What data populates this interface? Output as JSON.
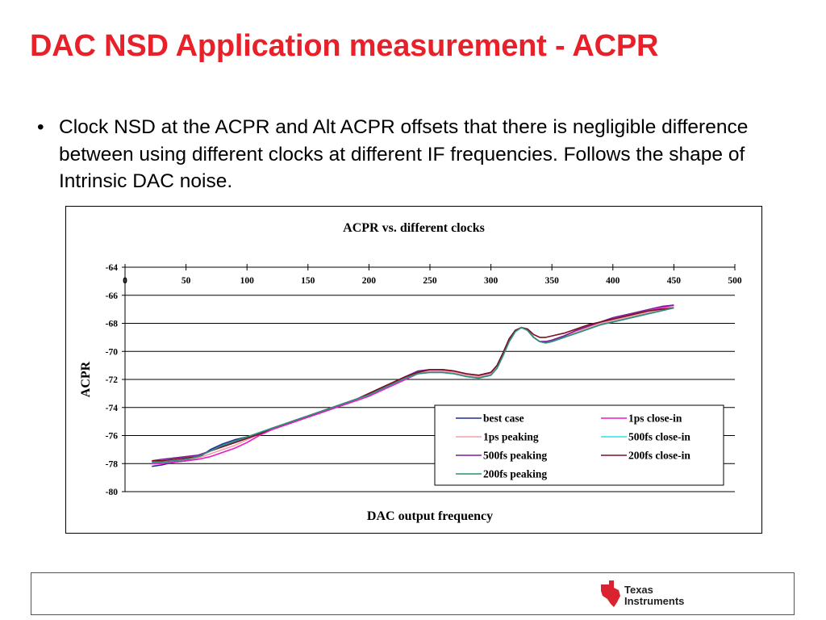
{
  "slide": {
    "title": "DAC NSD Application measurement - ACPR",
    "bullets": [
      "Clock NSD at the ACPR and Alt ACPR offsets that there is negligible difference between using different clocks at different IF frequencies. Follows the shape of Intrinsic DAC noise."
    ],
    "bullet_symbol": "•"
  },
  "footer": {
    "logo_line1": "Texas",
    "logo_line2": "Instruments",
    "logo_icon": "texas-state-ti-logo-icon",
    "logo_color": "#d9232e"
  },
  "chart_data": {
    "type": "line",
    "title": "ACPR vs. different clocks",
    "xlabel": "DAC output frequency",
    "ylabel": "ACPR",
    "xlim": [
      0,
      500
    ],
    "ylim": [
      -80,
      -64
    ],
    "x_ticks": [
      0,
      50,
      100,
      150,
      200,
      250,
      300,
      350,
      400,
      450,
      500
    ],
    "y_ticks": [
      -64,
      -66,
      -68,
      -70,
      -72,
      -74,
      -76,
      -78,
      -80
    ],
    "x_axis_position": "top",
    "grid": "horizontal",
    "legend_position": "bottom-right",
    "series": [
      {
        "name": "best case",
        "color": "#1f2f8f",
        "x": [
          22,
          30,
          40,
          50,
          60,
          70,
          80,
          90,
          100,
          110,
          120,
          130,
          140,
          150,
          160,
          170,
          180,
          190,
          200,
          210,
          220,
          230,
          240,
          250,
          260,
          270,
          280,
          290,
          300,
          305,
          310,
          315,
          320,
          325,
          330,
          335,
          340,
          345,
          350,
          360,
          370,
          380,
          390,
          400,
          410,
          420,
          430,
          440,
          450
        ],
        "y": [
          -78.2,
          -78.1,
          -77.9,
          -77.8,
          -77.6,
          -77.0,
          -76.6,
          -76.3,
          -76.1,
          -75.8,
          -75.5,
          -75.2,
          -74.9,
          -74.6,
          -74.3,
          -74.0,
          -73.7,
          -73.4,
          -73.1,
          -72.7,
          -72.3,
          -71.9,
          -71.6,
          -71.5,
          -71.5,
          -71.6,
          -71.8,
          -71.9,
          -71.6,
          -71.1,
          -70.2,
          -69.2,
          -68.5,
          -68.3,
          -68.5,
          -69.0,
          -69.3,
          -69.4,
          -69.3,
          -69.0,
          -68.7,
          -68.4,
          -68.1,
          -67.9,
          -67.7,
          -67.5,
          -67.3,
          -67.1,
          -66.9
        ]
      },
      {
        "name": "1ps close-in",
        "color": "#e81ac4",
        "x": [
          22,
          30,
          40,
          50,
          60,
          70,
          80,
          90,
          100,
          110,
          120,
          130,
          140,
          150,
          160,
          170,
          180,
          190,
          200,
          210,
          220,
          230,
          240,
          250,
          260,
          270,
          280,
          290,
          300,
          305,
          310,
          315,
          320,
          325,
          330,
          335,
          340,
          345,
          350,
          360,
          370,
          380,
          390,
          400,
          410,
          420,
          430,
          440,
          450
        ],
        "y": [
          -78.0,
          -78.0,
          -77.9,
          -77.8,
          -77.7,
          -77.5,
          -77.2,
          -76.9,
          -76.5,
          -76.0,
          -75.6,
          -75.3,
          -75.0,
          -74.7,
          -74.4,
          -74.1,
          -73.8,
          -73.5,
          -73.2,
          -72.8,
          -72.4,
          -72.0,
          -71.6,
          -71.4,
          -71.4,
          -71.5,
          -71.7,
          -71.8,
          -71.6,
          -71.1,
          -70.2,
          -69.2,
          -68.5,
          -68.3,
          -68.5,
          -69.0,
          -69.3,
          -69.3,
          -69.2,
          -68.9,
          -68.5,
          -68.2,
          -67.9,
          -67.7,
          -67.5,
          -67.3,
          -67.1,
          -66.9,
          -66.7
        ]
      },
      {
        "name": "1ps peaking",
        "color": "#f4a0a8",
        "x": [
          22,
          30,
          40,
          50,
          60,
          70,
          80,
          90,
          100,
          110,
          120,
          130,
          140,
          150,
          160,
          170,
          180,
          190,
          200,
          210,
          220,
          230,
          240,
          250,
          260,
          270,
          280,
          290,
          300,
          305,
          310,
          315,
          320,
          325,
          330,
          335,
          340,
          345,
          350,
          360,
          370,
          380,
          390,
          400,
          410,
          420,
          430,
          440,
          450
        ],
        "y": [
          -77.9,
          -77.9,
          -77.8,
          -77.7,
          -77.6,
          -77.3,
          -77.0,
          -76.7,
          -76.3,
          -75.9,
          -75.5,
          -75.2,
          -74.9,
          -74.6,
          -74.3,
          -74.0,
          -73.7,
          -73.4,
          -73.1,
          -72.7,
          -72.3,
          -71.9,
          -71.5,
          -71.4,
          -71.4,
          -71.5,
          -71.7,
          -71.8,
          -71.6,
          -71.1,
          -70.2,
          -69.2,
          -68.5,
          -68.3,
          -68.5,
          -69.0,
          -69.3,
          -69.3,
          -69.2,
          -68.9,
          -68.6,
          -68.3,
          -68.0,
          -67.8,
          -67.6,
          -67.4,
          -67.2,
          -67.0,
          -66.8
        ]
      },
      {
        "name": "500fs close-in",
        "color": "#2fe0ea",
        "x": [
          22,
          30,
          40,
          50,
          60,
          70,
          80,
          90,
          100,
          110,
          120,
          130,
          140,
          150,
          160,
          170,
          180,
          190,
          200,
          210,
          220,
          230,
          240,
          250,
          260,
          270,
          280,
          290,
          300,
          305,
          310,
          315,
          320,
          325,
          330,
          335,
          340,
          345,
          350,
          360,
          370,
          380,
          390,
          400,
          410,
          420,
          430,
          440,
          450
        ],
        "y": [
          -77.9,
          -77.9,
          -77.8,
          -77.7,
          -77.5,
          -77.1,
          -76.7,
          -76.4,
          -76.1,
          -75.8,
          -75.5,
          -75.2,
          -74.9,
          -74.6,
          -74.3,
          -74.0,
          -73.7,
          -73.4,
          -73.1,
          -72.7,
          -72.3,
          -71.9,
          -71.6,
          -71.5,
          -71.5,
          -71.6,
          -71.8,
          -71.9,
          -71.7,
          -71.2,
          -70.3,
          -69.3,
          -68.6,
          -68.3,
          -68.5,
          -69.0,
          -69.3,
          -69.4,
          -69.3,
          -69.0,
          -68.7,
          -68.4,
          -68.1,
          -67.9,
          -67.7,
          -67.5,
          -67.3,
          -67.1,
          -66.9
        ]
      },
      {
        "name": "500fs peaking",
        "color": "#7a1f9a",
        "x": [
          22,
          30,
          40,
          50,
          60,
          70,
          80,
          90,
          100,
          110,
          120,
          130,
          140,
          150,
          160,
          170,
          180,
          190,
          200,
          210,
          220,
          230,
          240,
          250,
          260,
          270,
          280,
          290,
          300,
          305,
          310,
          315,
          320,
          325,
          330,
          335,
          340,
          345,
          350,
          360,
          370,
          380,
          390,
          400,
          410,
          420,
          430,
          440,
          450
        ],
        "y": [
          -77.8,
          -77.7,
          -77.6,
          -77.5,
          -77.4,
          -77.1,
          -76.8,
          -76.5,
          -76.2,
          -75.9,
          -75.5,
          -75.2,
          -74.9,
          -74.6,
          -74.3,
          -74.0,
          -73.7,
          -73.4,
          -73.0,
          -72.6,
          -72.2,
          -71.8,
          -71.4,
          -71.3,
          -71.3,
          -71.4,
          -71.6,
          -71.7,
          -71.5,
          -71.0,
          -70.1,
          -69.1,
          -68.5,
          -68.3,
          -68.5,
          -69.0,
          -69.3,
          -69.3,
          -69.2,
          -68.9,
          -68.5,
          -68.2,
          -67.9,
          -67.6,
          -67.4,
          -67.2,
          -67.0,
          -66.8,
          -66.7
        ]
      },
      {
        "name": "200fs close-in",
        "color": "#7a1020",
        "x": [
          22,
          30,
          40,
          50,
          60,
          70,
          80,
          90,
          100,
          110,
          120,
          130,
          140,
          150,
          160,
          170,
          180,
          190,
          200,
          210,
          220,
          230,
          240,
          250,
          260,
          270,
          280,
          290,
          300,
          305,
          310,
          315,
          320,
          325,
          330,
          335,
          340,
          345,
          350,
          360,
          370,
          380,
          390,
          400,
          410,
          420,
          430,
          440,
          450
        ],
        "y": [
          -77.8,
          -77.8,
          -77.7,
          -77.6,
          -77.5,
          -77.1,
          -76.8,
          -76.5,
          -76.2,
          -75.9,
          -75.5,
          -75.2,
          -74.9,
          -74.6,
          -74.3,
          -74.0,
          -73.7,
          -73.4,
          -73.0,
          -72.6,
          -72.2,
          -71.8,
          -71.5,
          -71.3,
          -71.3,
          -71.4,
          -71.6,
          -71.7,
          -71.5,
          -71.0,
          -70.1,
          -69.1,
          -68.5,
          -68.3,
          -68.4,
          -68.8,
          -69.0,
          -69.0,
          -68.9,
          -68.7,
          -68.4,
          -68.1,
          -67.9,
          -67.7,
          -67.5,
          -67.3,
          -67.1,
          -67.0,
          -66.9
        ]
      },
      {
        "name": "200fs peaking",
        "color": "#2f8f7a",
        "x": [
          22,
          30,
          40,
          50,
          60,
          70,
          80,
          90,
          100,
          110,
          120,
          130,
          140,
          150,
          160,
          170,
          180,
          190,
          200,
          210,
          220,
          230,
          240,
          250,
          260,
          270,
          280,
          290,
          300,
          305,
          310,
          315,
          320,
          325,
          330,
          335,
          340,
          345,
          350,
          360,
          370,
          380,
          390,
          400,
          410,
          420,
          430,
          440,
          450
        ],
        "y": [
          -77.9,
          -77.9,
          -77.8,
          -77.7,
          -77.5,
          -77.1,
          -76.7,
          -76.4,
          -76.1,
          -75.8,
          -75.5,
          -75.2,
          -74.9,
          -74.6,
          -74.3,
          -74.0,
          -73.7,
          -73.4,
          -73.1,
          -72.7,
          -72.3,
          -71.9,
          -71.6,
          -71.5,
          -71.5,
          -71.6,
          -71.8,
          -71.9,
          -71.7,
          -71.2,
          -70.3,
          -69.3,
          -68.6,
          -68.3,
          -68.5,
          -69.0,
          -69.3,
          -69.4,
          -69.3,
          -69.0,
          -68.7,
          -68.4,
          -68.1,
          -67.9,
          -67.7,
          -67.5,
          -67.3,
          -67.1,
          -66.9
        ]
      }
    ]
  }
}
